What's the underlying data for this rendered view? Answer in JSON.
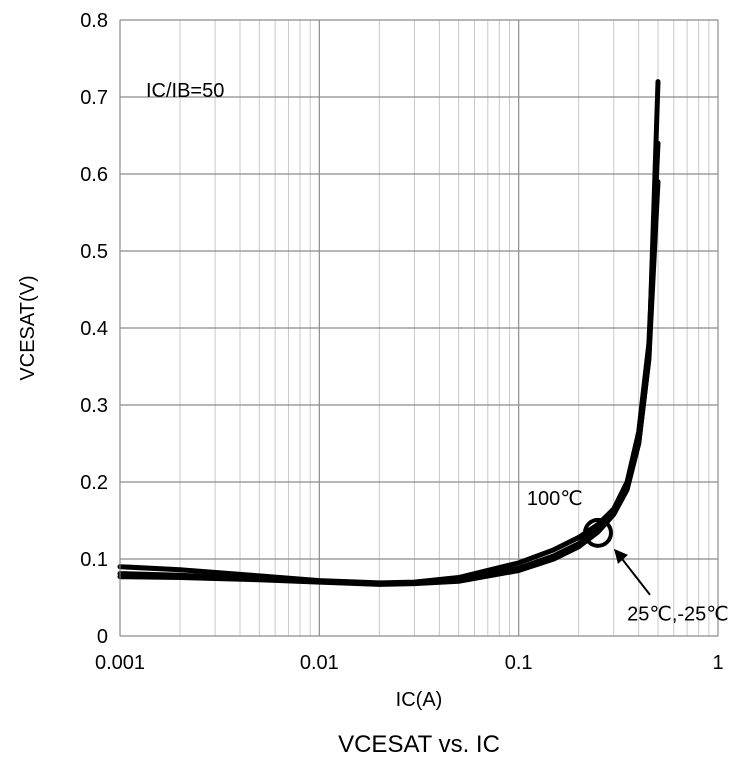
{
  "chart_data": {
    "type": "line",
    "title": "VCESAT vs. IC",
    "xlabel": "IC(A)",
    "ylabel": "VCESAT(V)",
    "xscale": "log",
    "xlim": [
      0.001,
      1
    ],
    "ylim": [
      0,
      0.8
    ],
    "grid": true,
    "legend": "none",
    "line_color": "#000000",
    "grid_major_color": "#8c8c8c",
    "grid_minor_color": "#c8c8c8",
    "x_ticks": [
      {
        "value": 0.001,
        "label": "0.001"
      },
      {
        "value": 0.01,
        "label": "0.01"
      },
      {
        "value": 0.1,
        "label": "0.1"
      },
      {
        "value": 1,
        "label": "1"
      }
    ],
    "y_ticks": [
      {
        "value": 0,
        "label": "0"
      },
      {
        "value": 0.1,
        "label": "0.1"
      },
      {
        "value": 0.2,
        "label": "0.2"
      },
      {
        "value": 0.3,
        "label": "0.3"
      },
      {
        "value": 0.4,
        "label": "0.4"
      },
      {
        "value": 0.5,
        "label": "0.5"
      },
      {
        "value": 0.6,
        "label": "0.6"
      },
      {
        "value": 0.7,
        "label": "0.7"
      },
      {
        "value": 0.8,
        "label": "0.8"
      }
    ],
    "series": [
      {
        "x": [
          0.001,
          0.002,
          0.005,
          0.01,
          0.02,
          0.03,
          0.05,
          0.1,
          0.15,
          0.2,
          0.25,
          0.3,
          0.35,
          0.4,
          0.45,
          0.5
        ],
        "y": [
          0.09,
          0.086,
          0.078,
          0.072,
          0.069,
          0.07,
          0.076,
          0.095,
          0.112,
          0.128,
          0.145,
          0.165,
          0.195,
          0.25,
          0.36,
          0.72
        ]
      },
      {
        "x": [
          0.001,
          0.002,
          0.005,
          0.01,
          0.02,
          0.03,
          0.05,
          0.1,
          0.15,
          0.2,
          0.25,
          0.3,
          0.35,
          0.4,
          0.45,
          0.5
        ],
        "y": [
          0.081,
          0.079,
          0.074,
          0.071,
          0.068,
          0.069,
          0.073,
          0.088,
          0.104,
          0.12,
          0.14,
          0.165,
          0.2,
          0.265,
          0.38,
          0.64
        ]
      },
      {
        "x": [
          0.001,
          0.002,
          0.005,
          0.01,
          0.02,
          0.03,
          0.05,
          0.1,
          0.15,
          0.2,
          0.25,
          0.3,
          0.35,
          0.4,
          0.45,
          0.5
        ],
        "y": [
          0.077,
          0.076,
          0.073,
          0.07,
          0.067,
          0.068,
          0.071,
          0.085,
          0.1,
          0.116,
          0.135,
          0.158,
          0.19,
          0.25,
          0.36,
          0.59
        ]
      }
    ],
    "annotations": [
      {
        "text": "IC/IB=50",
        "x": 0.00135,
        "y": 0.7
      },
      {
        "text": "100℃",
        "x": 0.11,
        "y": 0.17
      },
      {
        "text": "25℃,-25℃",
        "x": 0.35,
        "y": 0.02
      }
    ],
    "marker": {
      "x": 0.25,
      "y": 0.134
    }
  }
}
